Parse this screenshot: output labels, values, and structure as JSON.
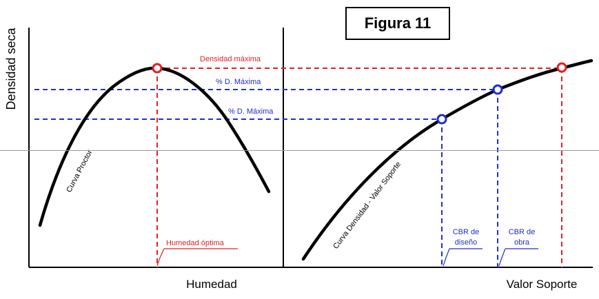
{
  "figure_label": "Figura 11",
  "y_axis_label": "Densidad seca",
  "left_panel": {
    "x_axis_label": "Humedad",
    "curve_label": "Curva Proctor",
    "max_label": "Densidad máxima",
    "optimum_label": "Humedad óptima"
  },
  "right_panel": {
    "x_axis_label": "Valor Soporte",
    "curve_label": "Curva Densidad - Valor Soporte",
    "pct_label_1": "% D. Máxima",
    "pct_label_2": "% D. Máxima",
    "cbr_design_line1": "CBR de",
    "cbr_design_line2": "diseño",
    "cbr_work_line1": "CBR de",
    "cbr_work_line2": "obra"
  },
  "colors": {
    "curve": "#000000",
    "max_line": "#e0201f",
    "pct_line": "#1f2fc8"
  }
}
